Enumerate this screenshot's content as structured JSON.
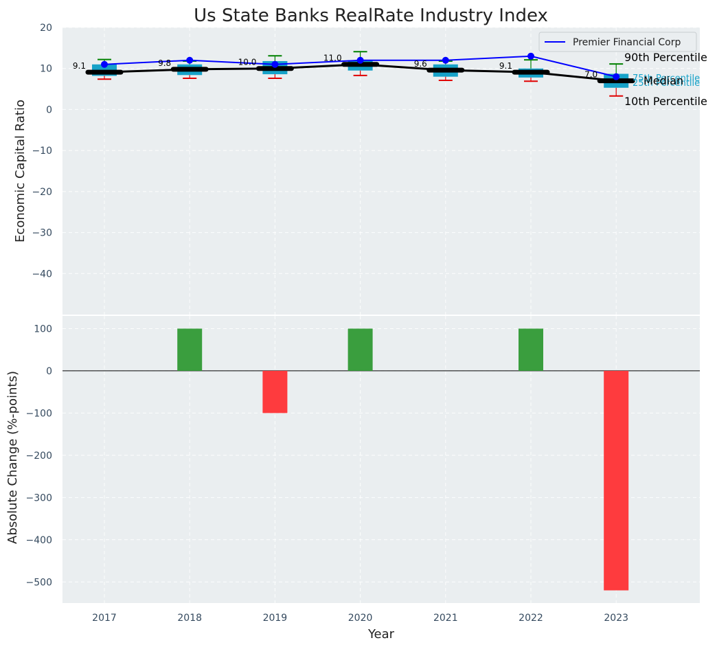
{
  "colors": {
    "panel_bg": "#eaeef0",
    "box_fill": "#17a2c8",
    "median_line": "#000000",
    "company_line": "#0000ff",
    "p90_whisker": "#008000",
    "p10_whisker": "#e00000",
    "bar_up": "#3a9e3e",
    "bar_down": "#fe3b3e",
    "pct_label": "#17a2c8"
  },
  "chart_data": [
    {
      "id": "top",
      "type": "box",
      "title": "Us State Banks RealRate Industry Index",
      "ylabel": "Economic Capital Ratio",
      "ylim": [
        -50,
        20
      ],
      "yticks": [
        20,
        10,
        0,
        -10,
        -20,
        -30,
        -40
      ],
      "ytick_labels": [
        "20",
        "10",
        "0",
        "−10",
        "−20",
        "−30",
        "−40"
      ],
      "categories": [
        "2017",
        "2018",
        "2019",
        "2020",
        "2021",
        "2022",
        "2023"
      ],
      "p10": [
        7.4,
        7.6,
        7.6,
        8.3,
        7.1,
        6.9,
        3.3
      ],
      "p25": [
        8.2,
        8.4,
        8.6,
        9.5,
        8.0,
        7.8,
        5.3
      ],
      "median": [
        9.1,
        9.8,
        10.0,
        11.0,
        9.6,
        9.1,
        7.0
      ],
      "p75": [
        11.0,
        11.0,
        11.8,
        12.0,
        11.0,
        10.0,
        8.7
      ],
      "p90": [
        12.2,
        11.8,
        13.1,
        14.1,
        11.8,
        12.1,
        11.1
      ],
      "median_labels": [
        "9.1",
        "9.8",
        "10.0",
        "11.0",
        "9.6",
        "9.1",
        "7.0"
      ],
      "series": [
        {
          "name": "Premier Financial Corp",
          "values": [
            11,
            12,
            11,
            12,
            12,
            13,
            8
          ]
        }
      ],
      "legend": {
        "label": "Premier Financial Corp",
        "position": "top-right"
      },
      "annotations": {
        "p90": "90th Percentile",
        "p75": "75th Percentile",
        "median": "Median",
        "p25": "25th Percentile",
        "p10": "10th Percentile"
      }
    },
    {
      "id": "bottom",
      "type": "bar",
      "ylabel": "Absolute Change (%-points)",
      "xlabel": "Year",
      "ylim": [
        -550,
        130
      ],
      "yticks": [
        100,
        0,
        -100,
        -200,
        -300,
        -400,
        -500
      ],
      "ytick_labels": [
        "100",
        "0",
        "−100",
        "−200",
        "−300",
        "−400",
        "−500"
      ],
      "categories": [
        "2017",
        "2018",
        "2019",
        "2020",
        "2021",
        "2022",
        "2023"
      ],
      "values": [
        0,
        100,
        -100,
        100,
        0,
        100,
        -520
      ]
    }
  ]
}
